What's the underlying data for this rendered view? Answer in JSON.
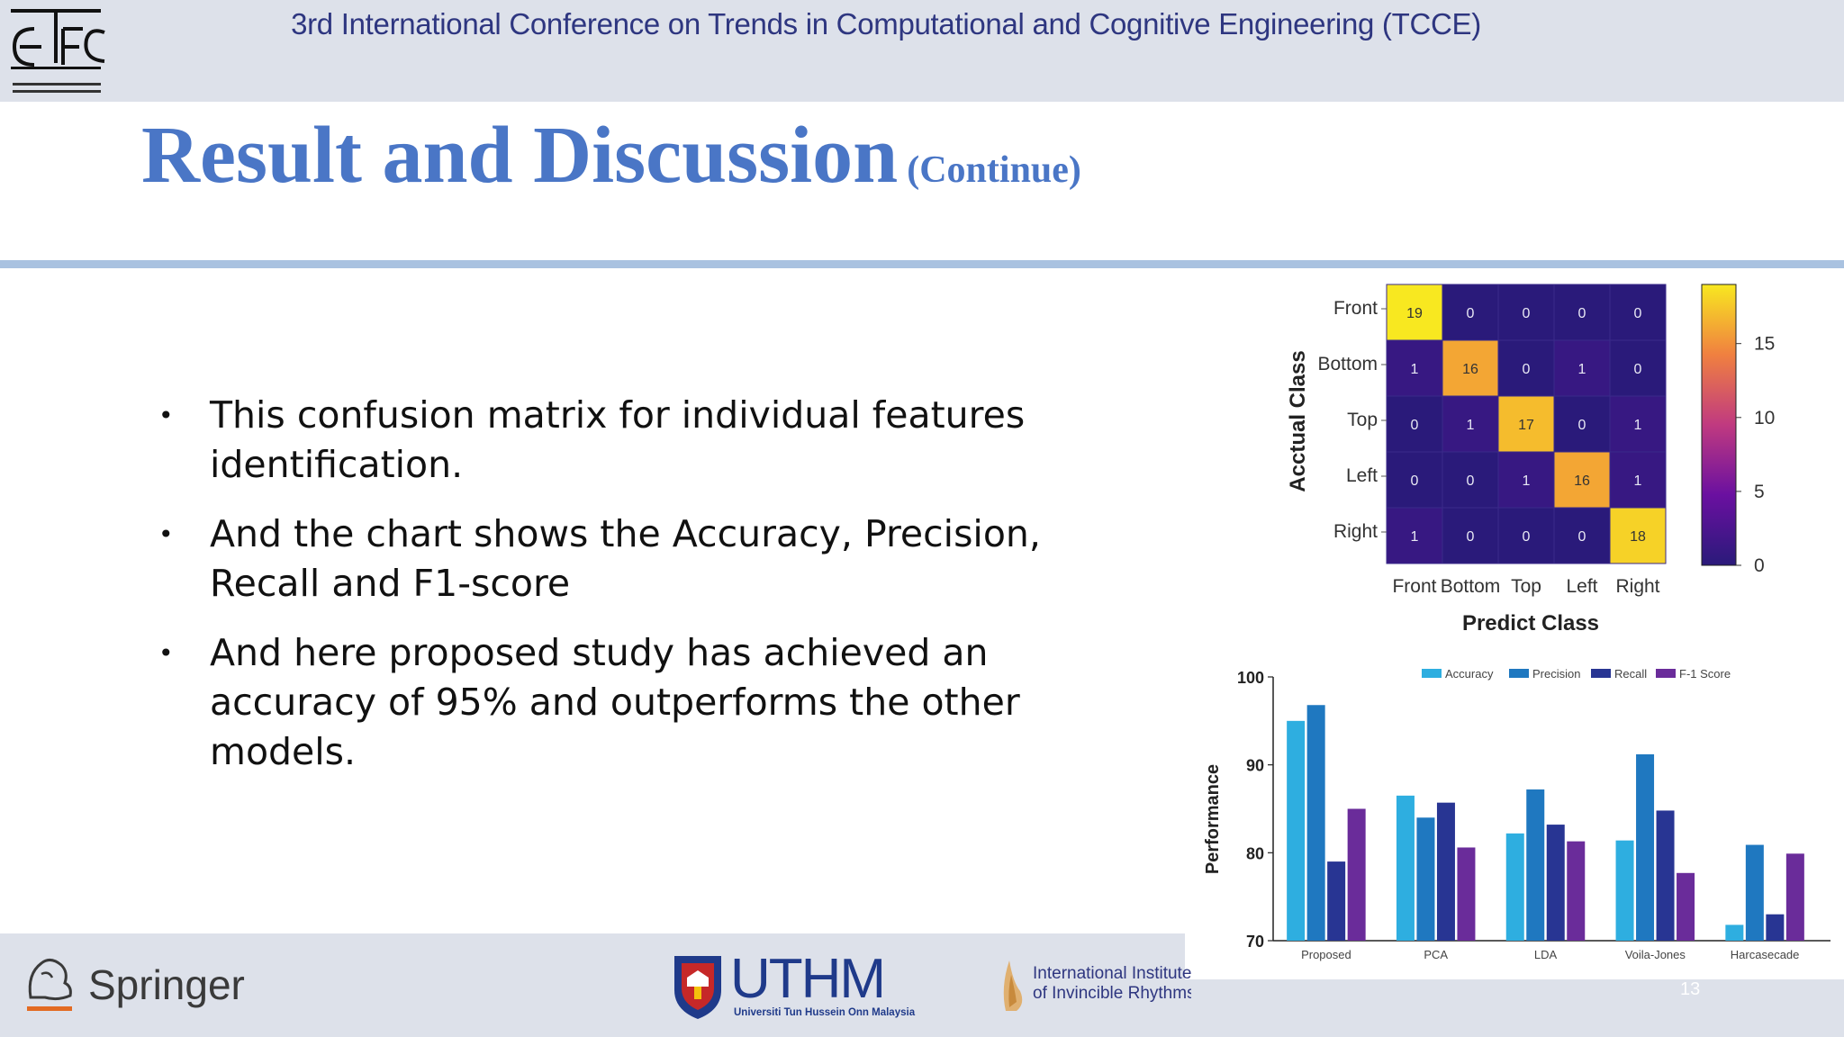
{
  "header": {
    "conference_title": "3rd International Conference on Trends in Computational and Cognitive Engineering (TCCE)"
  },
  "slide": {
    "title": "Result and Discussion",
    "subtitle": "(Continue)",
    "bullets": [
      "This confusion matrix for individual features identification.",
      "And the chart shows the Accuracy, Precision, Recall and F1-score",
      "And here proposed study has achieved an accuracy of 95% and outperforms the other models."
    ],
    "page_number": "13"
  },
  "footer": {
    "springer": "Springer",
    "uthm": "UTHM",
    "uthm_sub": "Universiti Tun Hussein Onn Malaysia",
    "iir_line1": "International Institute",
    "iir_line2": "of Invincible Rhythms"
  },
  "colors": {
    "header_bg": "#dde1ea",
    "title_blue": "#4a76c6",
    "rule": "#a9c2e0",
    "accuracy": "#2eaee0",
    "precision": "#1f78c0",
    "recall": "#283593",
    "f1": "#6a2c9a"
  },
  "chart_data": [
    {
      "type": "heatmap",
      "xlabel": "Predict Class",
      "ylabel": "Acctual Class",
      "rows": [
        "Front",
        "Bottom",
        "Top",
        "Left",
        "Right"
      ],
      "cols": [
        "Front",
        "Bottom",
        "Top",
        "Left",
        "Right"
      ],
      "values": [
        [
          19,
          0,
          0,
          0,
          0
        ],
        [
          1,
          16,
          0,
          1,
          0
        ],
        [
          0,
          1,
          17,
          0,
          1
        ],
        [
          0,
          0,
          1,
          16,
          1
        ],
        [
          1,
          0,
          0,
          0,
          18
        ]
      ],
      "colorbar_ticks": [
        "0",
        "5",
        "10",
        "15"
      ],
      "colorbar_range": [
        0,
        19
      ]
    },
    {
      "type": "bar",
      "ylabel": "Performance",
      "categories": [
        "Proposed",
        "PCA",
        "LDA",
        "Voila-Jones",
        "Harcasecade"
      ],
      "ylim": [
        70,
        100
      ],
      "yticks": [
        "70",
        "80",
        "90",
        "100"
      ],
      "legend_position": "top",
      "series": [
        {
          "name": "Accuracy",
          "color": "#2eaee0",
          "values": [
            95,
            86.5,
            82.2,
            81.4,
            71.8
          ]
        },
        {
          "name": "Precision",
          "color": "#1f78c0",
          "values": [
            96.8,
            84,
            87.2,
            91.2,
            80.9
          ]
        },
        {
          "name": "Recall",
          "color": "#283593",
          "values": [
            79,
            85.7,
            83.2,
            84.8,
            73
          ]
        },
        {
          "name": "F-1 Score",
          "color": "#6a2c9a",
          "values": [
            85,
            80.6,
            81.3,
            77.7,
            79.9
          ]
        }
      ]
    }
  ]
}
